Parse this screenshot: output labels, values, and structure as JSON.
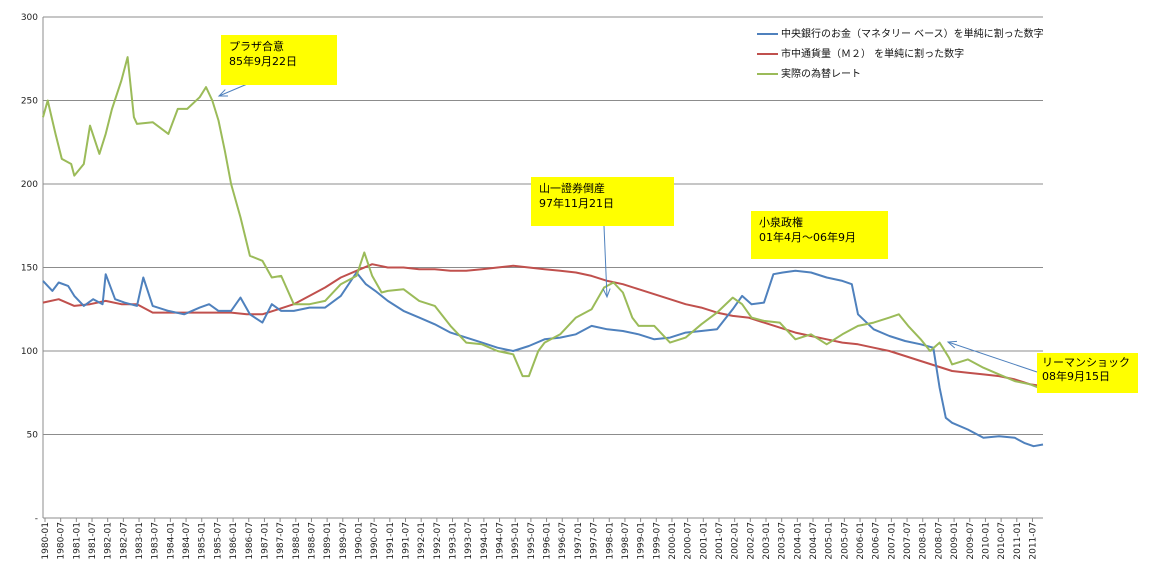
{
  "chart_data": {
    "type": "line",
    "ylim": [
      0,
      300
    ],
    "yticks": [
      {
        "value": 0,
        "label": "-"
      },
      {
        "value": 50,
        "label": "50"
      },
      {
        "value": 100,
        "label": "100"
      },
      {
        "value": 150,
        "label": "150"
      },
      {
        "value": 200,
        "label": "200"
      },
      {
        "value": 250,
        "label": "250"
      },
      {
        "value": 300,
        "label": "300"
      }
    ],
    "xlim": [
      1980.0,
      2011.9
    ],
    "xtick_labels": [
      "1980-01",
      "1980-07",
      "1981-01",
      "1981-07",
      "1982-01",
      "1982-07",
      "1983-01",
      "1983-07",
      "1984-01",
      "1984-07",
      "1985-01",
      "1985-07",
      "1986-01",
      "1986-07",
      "1987-01",
      "1987-07",
      "1988-01",
      "1988-07",
      "1989-01",
      "1989-07",
      "1990-01",
      "1990-07",
      "1991-01",
      "1991-07",
      "1992-01",
      "1992-07",
      "1993-01",
      "1993-07",
      "1994-01",
      "1994-07",
      "1995-01",
      "1995-07",
      "1996-01",
      "1996-07",
      "1997-01",
      "1997-07",
      "1998-01",
      "1998-07",
      "1999-01",
      "1999-07",
      "2000-01",
      "2000-07",
      "2001-01",
      "2001-07",
      "2002-01",
      "2002-07",
      "2003-01",
      "2003-07",
      "2004-01",
      "2004-07",
      "2005-01",
      "2005-07",
      "2006-01",
      "2006-07",
      "2007-01",
      "2007-07",
      "2008-01",
      "2008-07",
      "2009-01",
      "2009-07",
      "2010-01",
      "2010-07",
      "2011-01",
      "2011-07"
    ],
    "grid": true,
    "legend_position": "top-right",
    "series": [
      {
        "name": "中央銀行のお金（マネタリー ベース）を単純に割った数字",
        "color": "#4f81bd",
        "points": [
          [
            1980.0,
            142
          ],
          [
            1980.3,
            136
          ],
          [
            1980.5,
            141
          ],
          [
            1980.8,
            139
          ],
          [
            1981.0,
            133
          ],
          [
            1981.3,
            127
          ],
          [
            1981.6,
            131
          ],
          [
            1981.9,
            128
          ],
          [
            1982.0,
            146
          ],
          [
            1982.3,
            131
          ],
          [
            1982.6,
            129
          ],
          [
            1983.0,
            127
          ],
          [
            1983.2,
            144
          ],
          [
            1983.5,
            127
          ],
          [
            1984.0,
            124
          ],
          [
            1984.5,
            122
          ],
          [
            1985.0,
            126
          ],
          [
            1985.3,
            128
          ],
          [
            1985.6,
            124
          ],
          [
            1986.0,
            124
          ],
          [
            1986.3,
            132
          ],
          [
            1986.6,
            122
          ],
          [
            1987.0,
            117
          ],
          [
            1987.3,
            128
          ],
          [
            1987.6,
            124
          ],
          [
            1988.0,
            124
          ],
          [
            1988.5,
            126
          ],
          [
            1989.0,
            126
          ],
          [
            1989.5,
            133
          ],
          [
            1990.0,
            147
          ],
          [
            1990.3,
            140
          ],
          [
            1990.6,
            136
          ],
          [
            1991.0,
            130
          ],
          [
            1991.5,
            124
          ],
          [
            1992.0,
            120
          ],
          [
            1992.5,
            116
          ],
          [
            1993.0,
            111
          ],
          [
            1993.5,
            108
          ],
          [
            1994.0,
            105
          ],
          [
            1994.5,
            102
          ],
          [
            1995.0,
            100
          ],
          [
            1995.5,
            103
          ],
          [
            1996.0,
            107
          ],
          [
            1996.5,
            108
          ],
          [
            1997.0,
            110
          ],
          [
            1997.5,
            115
          ],
          [
            1998.0,
            113
          ],
          [
            1998.5,
            112
          ],
          [
            1999.0,
            110
          ],
          [
            1999.5,
            107
          ],
          [
            2000.0,
            108
          ],
          [
            2000.5,
            111
          ],
          [
            2001.0,
            112
          ],
          [
            2001.5,
            113
          ],
          [
            2002.0,
            125
          ],
          [
            2002.3,
            133
          ],
          [
            2002.6,
            128
          ],
          [
            2003.0,
            129
          ],
          [
            2003.3,
            146
          ],
          [
            2003.6,
            147
          ],
          [
            2004.0,
            148
          ],
          [
            2004.5,
            147
          ],
          [
            2005.0,
            144
          ],
          [
            2005.5,
            142
          ],
          [
            2005.8,
            140
          ],
          [
            2006.0,
            122
          ],
          [
            2006.5,
            113
          ],
          [
            2007.0,
            109
          ],
          [
            2007.5,
            106
          ],
          [
            2008.0,
            104
          ],
          [
            2008.4,
            102
          ],
          [
            2008.6,
            78
          ],
          [
            2008.8,
            60
          ],
          [
            2009.0,
            57
          ],
          [
            2009.5,
            53
          ],
          [
            2010.0,
            48
          ],
          [
            2010.5,
            49
          ],
          [
            2011.0,
            48
          ],
          [
            2011.3,
            45
          ],
          [
            2011.6,
            43
          ],
          [
            2011.9,
            44
          ]
        ]
      },
      {
        "name": "市中通貨量（Ｍ２） を単純に割った数字",
        "color": "#c0504d",
        "points": [
          [
            1980.0,
            129
          ],
          [
            1980.5,
            131
          ],
          [
            1981.0,
            127
          ],
          [
            1981.5,
            128
          ],
          [
            1982.0,
            130
          ],
          [
            1982.5,
            128
          ],
          [
            1983.0,
            128
          ],
          [
            1983.5,
            123
          ],
          [
            1984.0,
            123
          ],
          [
            1984.5,
            123
          ],
          [
            1985.0,
            123
          ],
          [
            1985.5,
            123
          ],
          [
            1986.0,
            123
          ],
          [
            1986.5,
            122
          ],
          [
            1987.0,
            122
          ],
          [
            1987.5,
            125
          ],
          [
            1988.0,
            128
          ],
          [
            1988.5,
            133
          ],
          [
            1989.0,
            138
          ],
          [
            1989.5,
            144
          ],
          [
            1990.0,
            148
          ],
          [
            1990.5,
            152
          ],
          [
            1991.0,
            150
          ],
          [
            1991.5,
            150
          ],
          [
            1992.0,
            149
          ],
          [
            1992.5,
            149
          ],
          [
            1993.0,
            148
          ],
          [
            1993.5,
            148
          ],
          [
            1994.0,
            149
          ],
          [
            1994.5,
            150
          ],
          [
            1995.0,
            151
          ],
          [
            1995.5,
            150
          ],
          [
            1996.0,
            149
          ],
          [
            1996.5,
            148
          ],
          [
            1997.0,
            147
          ],
          [
            1997.5,
            145
          ],
          [
            1998.0,
            142
          ],
          [
            1998.5,
            140
          ],
          [
            1999.0,
            137
          ],
          [
            1999.5,
            134
          ],
          [
            2000.0,
            131
          ],
          [
            2000.5,
            128
          ],
          [
            2001.0,
            126
          ],
          [
            2001.5,
            123
          ],
          [
            2002.0,
            121
          ],
          [
            2002.5,
            120
          ],
          [
            2003.0,
            117
          ],
          [
            2003.5,
            114
          ],
          [
            2004.0,
            111
          ],
          [
            2004.5,
            109
          ],
          [
            2005.0,
            107
          ],
          [
            2005.5,
            105
          ],
          [
            2006.0,
            104
          ],
          [
            2006.5,
            102
          ],
          [
            2007.0,
            100
          ],
          [
            2007.5,
            97
          ],
          [
            2008.0,
            94
          ],
          [
            2008.5,
            91
          ],
          [
            2009.0,
            88
          ],
          [
            2009.5,
            87
          ],
          [
            2010.0,
            86
          ],
          [
            2010.5,
            85
          ],
          [
            2011.0,
            83
          ],
          [
            2011.5,
            80
          ],
          [
            2011.9,
            79
          ]
        ]
      },
      {
        "name": "実際の為替レート",
        "color": "#9bbb59",
        "points": [
          [
            1980.0,
            240
          ],
          [
            1980.15,
            250
          ],
          [
            1980.4,
            230
          ],
          [
            1980.6,
            215
          ],
          [
            1980.9,
            212
          ],
          [
            1981.0,
            205
          ],
          [
            1981.3,
            212
          ],
          [
            1981.5,
            235
          ],
          [
            1981.8,
            218
          ],
          [
            1982.0,
            230
          ],
          [
            1982.2,
            245
          ],
          [
            1982.5,
            262
          ],
          [
            1982.7,
            276
          ],
          [
            1982.9,
            240
          ],
          [
            1983.0,
            236
          ],
          [
            1983.5,
            237
          ],
          [
            1984.0,
            230
          ],
          [
            1984.3,
            245
          ],
          [
            1984.6,
            245
          ],
          [
            1985.0,
            252
          ],
          [
            1985.2,
            258
          ],
          [
            1985.4,
            250
          ],
          [
            1985.6,
            238
          ],
          [
            1985.8,
            220
          ],
          [
            1986.0,
            200
          ],
          [
            1986.3,
            180
          ],
          [
            1986.6,
            157
          ],
          [
            1987.0,
            154
          ],
          [
            1987.3,
            144
          ],
          [
            1987.6,
            145
          ],
          [
            1988.0,
            128
          ],
          [
            1988.5,
            128
          ],
          [
            1989.0,
            130
          ],
          [
            1989.5,
            140
          ],
          [
            1990.0,
            145
          ],
          [
            1990.25,
            159
          ],
          [
            1990.5,
            145
          ],
          [
            1990.8,
            135
          ],
          [
            1991.0,
            136
          ],
          [
            1991.5,
            137
          ],
          [
            1992.0,
            130
          ],
          [
            1992.5,
            127
          ],
          [
            1993.0,
            115
          ],
          [
            1993.5,
            105
          ],
          [
            1994.0,
            104
          ],
          [
            1994.5,
            100
          ],
          [
            1995.0,
            98
          ],
          [
            1995.3,
            85
          ],
          [
            1995.5,
            85
          ],
          [
            1995.8,
            100
          ],
          [
            1996.0,
            105
          ],
          [
            1996.5,
            110
          ],
          [
            1997.0,
            120
          ],
          [
            1997.5,
            125
          ],
          [
            1997.9,
            138
          ],
          [
            1998.2,
            141
          ],
          [
            1998.5,
            135
          ],
          [
            1998.8,
            120
          ],
          [
            1999.0,
            115
          ],
          [
            1999.5,
            115
          ],
          [
            2000.0,
            105
          ],
          [
            2000.5,
            108
          ],
          [
            2001.0,
            116
          ],
          [
            2001.5,
            123
          ],
          [
            2002.0,
            132
          ],
          [
            2002.3,
            128
          ],
          [
            2002.6,
            120
          ],
          [
            2003.0,
            118
          ],
          [
            2003.5,
            117
          ],
          [
            2004.0,
            107
          ],
          [
            2004.5,
            110
          ],
          [
            2005.0,
            104
          ],
          [
            2005.5,
            110
          ],
          [
            2006.0,
            115
          ],
          [
            2006.5,
            117
          ],
          [
            2007.0,
            120
          ],
          [
            2007.3,
            122
          ],
          [
            2007.6,
            115
          ],
          [
            2008.0,
            107
          ],
          [
            2008.3,
            100
          ],
          [
            2008.6,
            105
          ],
          [
            2008.9,
            96
          ],
          [
            2009.0,
            92
          ],
          [
            2009.5,
            95
          ],
          [
            2010.0,
            90
          ],
          [
            2010.5,
            86
          ],
          [
            2011.0,
            82
          ],
          [
            2011.5,
            80
          ],
          [
            2011.9,
            77
          ]
        ]
      }
    ],
    "annotations": [
      {
        "id": "plaza",
        "line1": "プラザ合意",
        "line2": "85年9月22日"
      },
      {
        "id": "yamaichi",
        "line1": "山一證券倒産",
        "line2": "97年11月21日"
      },
      {
        "id": "koizumi",
        "line1": "小泉政権",
        "line2": "01年4月～06年9月"
      },
      {
        "id": "lehman",
        "line1": "リーマンショック",
        "line2": "08年9月15日"
      }
    ]
  }
}
